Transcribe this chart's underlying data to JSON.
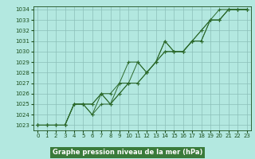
{
  "series": [
    [
      1023,
      1023,
      1023,
      1023,
      1025,
      1025,
      1024,
      1026,
      1025,
      1027,
      1029,
      1029,
      1028,
      1029,
      1031,
      1030,
      1030,
      1031,
      1032,
      1033,
      1034,
      1034,
      1034,
      1034
    ],
    [
      1023,
      1023,
      1023,
      1023,
      1025,
      1025,
      1025,
      1026,
      1026,
      1027,
      1027,
      1029,
      1028,
      1029,
      1030,
      1030,
      1030,
      1031,
      1032,
      1033,
      1033,
      1034,
      1034,
      1034
    ],
    [
      1023,
      1023,
      1023,
      1023,
      1025,
      1025,
      1024,
      1025,
      1025,
      1026,
      1027,
      1027,
      1028,
      1029,
      1030,
      1030,
      1030,
      1031,
      1031,
      1033,
      1033,
      1034,
      1034,
      1034
    ],
    [
      1023,
      1023,
      1023,
      1023,
      1025,
      1025,
      1025,
      1026,
      1025,
      1026,
      1027,
      1027,
      1028,
      1029,
      1031,
      1030,
      1030,
      1031,
      1031,
      1033,
      1033,
      1034,
      1034,
      1034
    ]
  ],
  "x_min": 0,
  "x_max": 23,
  "y_min": 1023,
  "y_max": 1034,
  "line_color": "#2d6a2d",
  "marker": "+",
  "bg_color": "#b3e8e0",
  "plot_bg_color": "#b3e8e0",
  "grid_color": "#8bbfb8",
  "xlabel": "Graphe pression niveau de la mer (hPa)",
  "xlabel_color": "#1a4d1a",
  "tick_color": "#1a4d1a",
  "xlabel_bg": "#3a7a3a",
  "xlabel_text_color": "#ffffff"
}
